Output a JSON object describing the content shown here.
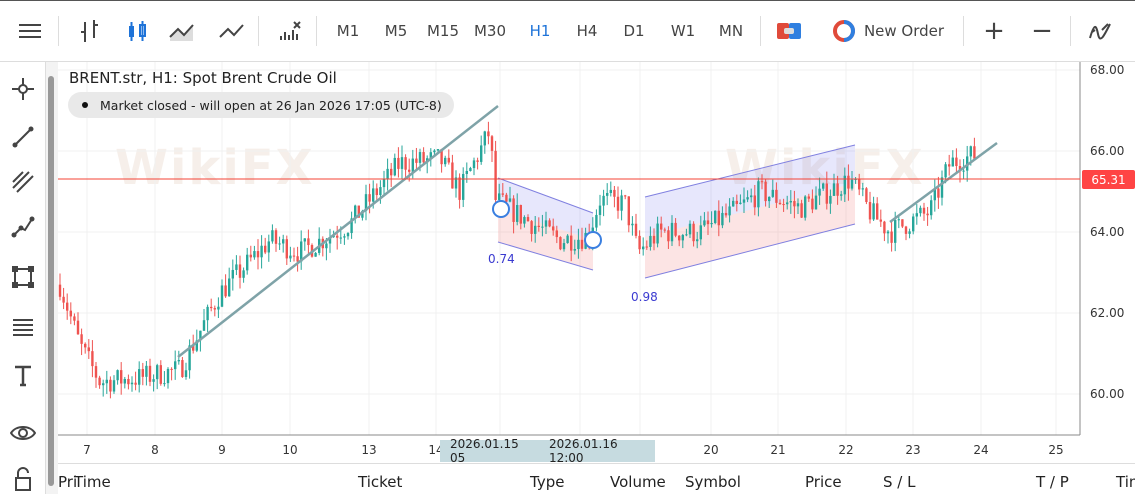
{
  "toolbar": {
    "timeframes": [
      "M1",
      "M5",
      "M15",
      "M30",
      "H1",
      "H4",
      "D1",
      "W1",
      "MN"
    ],
    "active_timeframe": "H1",
    "new_order": "New Order",
    "zoom_in": "+",
    "zoom_out": "−"
  },
  "chart": {
    "title": "BRENT.str, H1: Spot Brent Crude Oil",
    "status": "Market closed - will open at 26 Jan 2026 17:05 (UTC-8)",
    "price_ticks": [
      "68.00",
      "66.00",
      "64.00",
      "62.00",
      "60.00"
    ],
    "current_price": "65.31",
    "date_ticks": [
      "7",
      "8",
      "9",
      "10",
      "13",
      "14",
      "20",
      "21",
      "22",
      "23",
      "24",
      "25"
    ],
    "crosshair_dates": [
      "2026.01.15 05",
      "2026.01.16 12:00"
    ],
    "channel_labels": [
      "0.74",
      "0.98"
    ],
    "watermark": "WikiFX",
    "colors": {
      "up": "#26a69a",
      "down": "#ef5350",
      "price_line": "#f44336",
      "accent": "#1e73d8"
    }
  },
  "table": {
    "columns": [
      "Time",
      "Ticket",
      "Type",
      "Volume",
      "Symbol",
      "Price",
      "S / L",
      "T / P",
      "Time",
      "Pri"
    ]
  }
}
